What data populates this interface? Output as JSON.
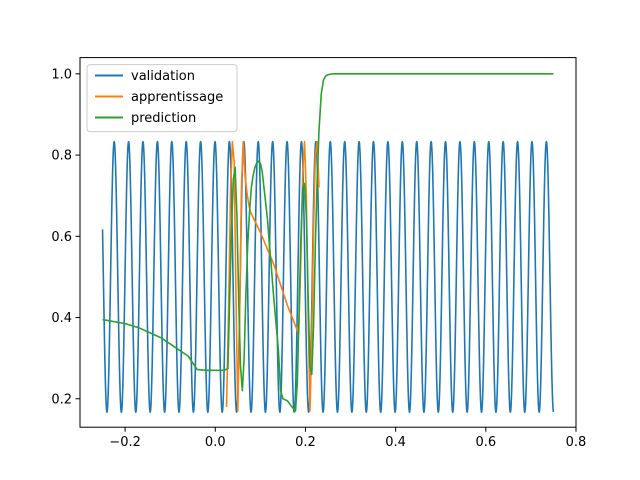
{
  "chart_data": {
    "type": "line",
    "title": "",
    "xlabel": "",
    "ylabel": "",
    "xlim": [
      -0.3,
      0.8
    ],
    "ylim": [
      0.13,
      1.04
    ],
    "xticks": [
      -0.2,
      0.0,
      0.2,
      0.4,
      0.6,
      0.8
    ],
    "xtick_labels": [
      "−0.2",
      "0.0",
      "0.2",
      "0.4",
      "0.6",
      "0.8"
    ],
    "yticks": [
      0.2,
      0.4,
      0.6,
      0.8,
      1.0
    ],
    "ytick_labels": [
      "0.2",
      "0.4",
      "0.6",
      "0.8",
      "1.0"
    ],
    "grid": false,
    "legend_position": "top-left",
    "series": [
      {
        "name": "validation",
        "color": "#1f77b4",
        "function": {
          "kind": "sine",
          "x_start": -0.25,
          "x_end": 0.75,
          "center": 0.5,
          "amplitude": 0.333,
          "period": 0.03195,
          "phase_x": -0.2322
        }
      },
      {
        "name": "apprentissage",
        "color": "#ff7f0e",
        "x": [
          0.025,
          0.03,
          0.034,
          0.038,
          0.042,
          0.046,
          0.05,
          0.054,
          0.058,
          0.062,
          0.066,
          0.07,
          0.074,
          0.078,
          0.1,
          0.13,
          0.16,
          0.185,
          0.19,
          0.194,
          0.198,
          0.202,
          0.206,
          0.21,
          0.214,
          0.218,
          0.222,
          0.226,
          0.23
        ],
        "y": [
          0.18,
          0.45,
          0.72,
          0.833,
          0.78,
          0.45,
          0.17,
          0.4,
          0.72,
          0.833,
          0.75,
          0.71,
          0.68,
          0.66,
          0.61,
          0.53,
          0.43,
          0.36,
          0.55,
          0.76,
          0.833,
          0.7,
          0.4,
          0.17,
          0.35,
          0.62,
          0.8,
          0.833,
          0.72
        ]
      },
      {
        "name": "prediction",
        "color": "#2ca02c",
        "x": [
          -0.25,
          -0.2,
          -0.17,
          -0.14,
          -0.12,
          -0.1,
          -0.08,
          -0.06,
          -0.04,
          -0.02,
          0.0,
          0.02,
          0.028,
          0.032,
          0.036,
          0.04,
          0.044,
          0.048,
          0.052,
          0.056,
          0.06,
          0.064,
          0.068,
          0.072,
          0.076,
          0.08,
          0.084,
          0.088,
          0.092,
          0.096,
          0.1,
          0.104,
          0.108,
          0.112,
          0.116,
          0.12,
          0.124,
          0.128,
          0.132,
          0.136,
          0.14,
          0.145,
          0.15,
          0.16,
          0.17,
          0.178,
          0.182,
          0.186,
          0.19,
          0.194,
          0.198,
          0.202,
          0.206,
          0.21,
          0.214,
          0.218,
          0.222,
          0.226,
          0.23,
          0.235,
          0.24,
          0.245,
          0.25,
          0.26,
          0.28,
          0.35,
          0.5,
          0.75
        ],
        "y": [
          0.395,
          0.385,
          0.375,
          0.36,
          0.35,
          0.335,
          0.32,
          0.305,
          0.272,
          0.27,
          0.27,
          0.27,
          0.275,
          0.45,
          0.62,
          0.74,
          0.77,
          0.65,
          0.44,
          0.28,
          0.22,
          0.3,
          0.46,
          0.58,
          0.66,
          0.72,
          0.75,
          0.77,
          0.78,
          0.785,
          0.78,
          0.76,
          0.72,
          0.68,
          0.64,
          0.58,
          0.53,
          0.47,
          0.42,
          0.37,
          0.32,
          0.22,
          0.2,
          0.195,
          0.18,
          0.17,
          0.24,
          0.42,
          0.6,
          0.72,
          0.73,
          0.65,
          0.45,
          0.28,
          0.26,
          0.38,
          0.58,
          0.74,
          0.86,
          0.95,
          0.985,
          0.995,
          0.998,
          1.0,
          1.0,
          1.0,
          1.0,
          1.0
        ]
      }
    ]
  }
}
